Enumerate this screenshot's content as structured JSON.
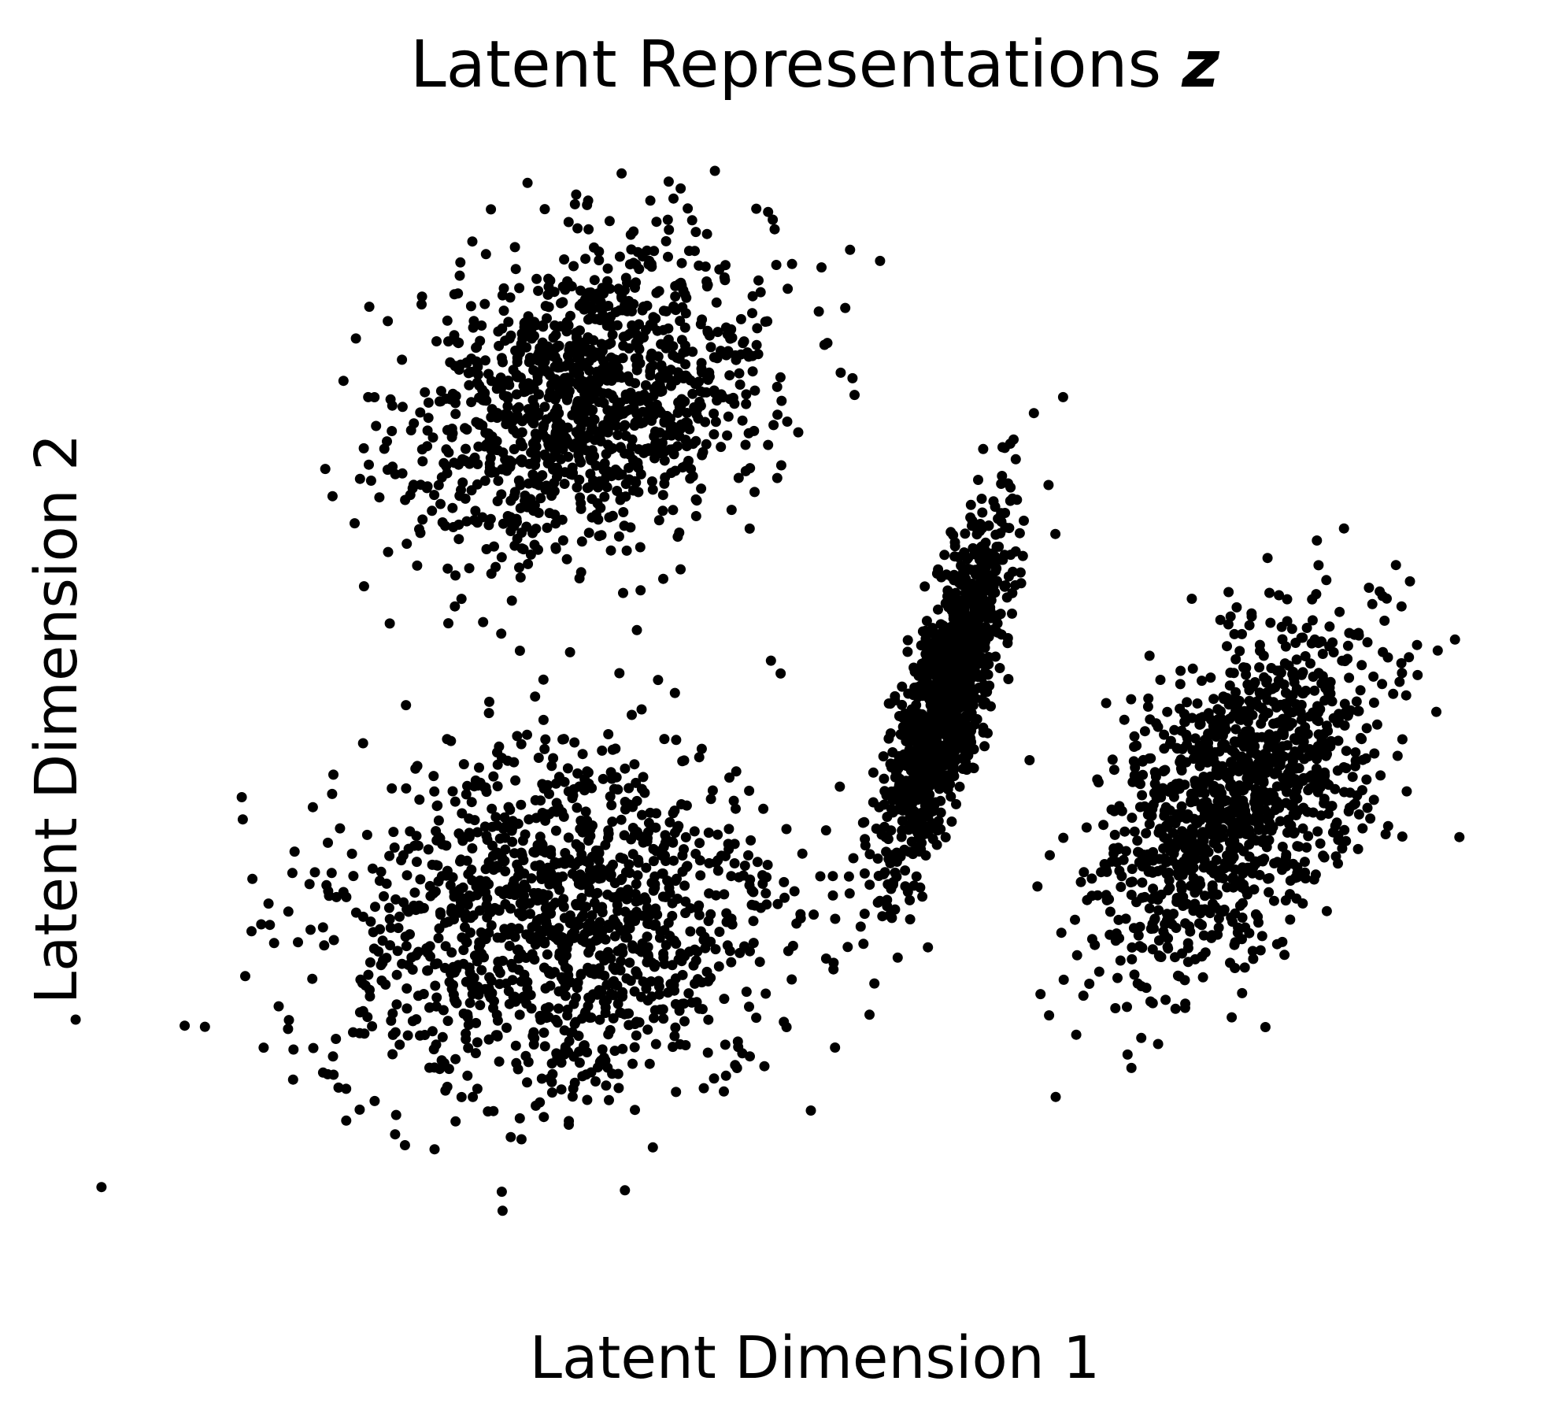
{
  "chart_data": {
    "type": "scatter",
    "title": "Latent Representations",
    "title_symbol": "z",
    "xlabel": "Latent Dimension 1",
    "ylabel": "Latent Dimension 2",
    "xlim": [
      -4.5,
      4.5
    ],
    "ylim": [
      -3.5,
      3.5
    ],
    "axes_visible": false,
    "grid": false,
    "legend": "none",
    "marker_color": "#000000",
    "series": [
      {
        "cluster": "top-left",
        "n": 1200,
        "center": [
          -1.55,
          1.95
        ],
        "std": [
          0.62,
          0.5
        ],
        "corr": 0.3,
        "outliers": [
          [
            -1.0,
            3.3
          ],
          [
            -1.6,
            1.25
          ],
          [
            -0.3,
            0.3
          ],
          [
            -2.7,
            1.1
          ],
          [
            -2.05,
            -0.45
          ],
          [
            -1.55,
            -0.4
          ],
          [
            -1.4,
            -0.55
          ]
        ]
      },
      {
        "cluster": "bottom-left",
        "n": 1300,
        "center": [
          -1.75,
          -1.35
        ],
        "std": [
          0.8,
          0.55
        ],
        "corr": 0.05,
        "outliers": [
          [
            -3.6,
            -1.95
          ],
          [
            -2.55,
            -0.85
          ],
          [
            -0.95,
            -2.4
          ],
          [
            -2.2,
            -2.52
          ],
          [
            -0.75,
            -1.5
          ],
          [
            -3.25,
            -0.75
          ]
        ]
      },
      {
        "cluster": "center-elongated",
        "n": 1200,
        "center": [
          0.9,
          0.1
        ],
        "std": [
          0.2,
          0.52
        ],
        "corr": 0.75,
        "outliers": [
          [
            1.7,
            1.95
          ],
          [
            1.5,
            1.85
          ],
          [
            0.5,
            -1.1
          ],
          [
            0.65,
            -1.2
          ],
          [
            1.6,
            1.4
          ]
        ]
      },
      {
        "cluster": "right",
        "n": 1200,
        "center": [
          2.9,
          -0.55
        ],
        "std": [
          0.48,
          0.55
        ],
        "corr": 0.55,
        "outliers": [
          [
            3.9,
            0.55
          ],
          [
            3.85,
            -0.1
          ],
          [
            2.35,
            -2.1
          ],
          [
            2.0,
            -1.2
          ],
          [
            3.75,
            -0.75
          ]
        ]
      }
    ]
  }
}
